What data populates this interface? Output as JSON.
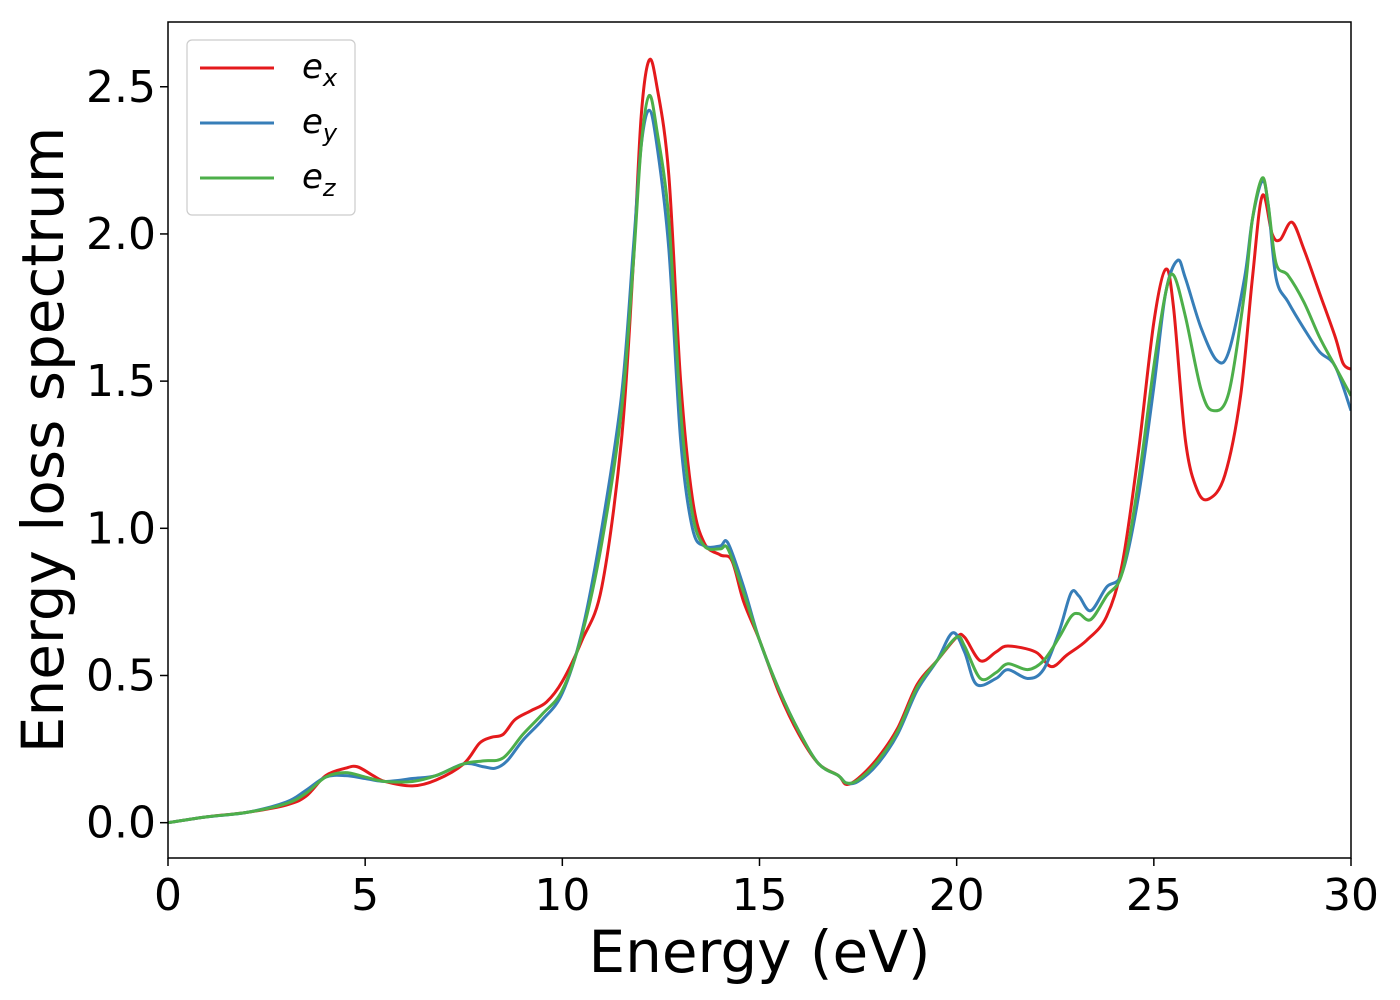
{
  "chart_data": {
    "type": "line",
    "title": "",
    "xlabel": "Energy (eV)",
    "ylabel": "Energy loss spectrum",
    "xlim": [
      0,
      30
    ],
    "ylim": [
      -0.12,
      2.72
    ],
    "xticks": [
      0,
      5,
      10,
      15,
      20,
      25,
      30
    ],
    "xtick_labels": [
      "0",
      "5",
      "10",
      "15",
      "20",
      "25",
      "30"
    ],
    "yticks": [
      0.0,
      0.5,
      1.0,
      1.5,
      2.0,
      2.5
    ],
    "ytick_labels": [
      "0.0",
      "0.5",
      "1.0",
      "1.5",
      "2.0",
      "2.5"
    ],
    "grid": false,
    "legend_position": "top-left",
    "series": [
      {
        "name": "e",
        "subscript": "x",
        "color": "#e41a1c",
        "points": [
          [
            0,
            0.0
          ],
          [
            1,
            0.02
          ],
          [
            2,
            0.035
          ],
          [
            3,
            0.06
          ],
          [
            3.5,
            0.09
          ],
          [
            4,
            0.16
          ],
          [
            4.5,
            0.185
          ],
          [
            4.8,
            0.19
          ],
          [
            5.2,
            0.16
          ],
          [
            5.5,
            0.14
          ],
          [
            6.2,
            0.125
          ],
          [
            6.8,
            0.145
          ],
          [
            7.5,
            0.2
          ],
          [
            7.9,
            0.27
          ],
          [
            8.2,
            0.29
          ],
          [
            8.5,
            0.3
          ],
          [
            8.8,
            0.35
          ],
          [
            9.2,
            0.38
          ],
          [
            9.6,
            0.41
          ],
          [
            10,
            0.48
          ],
          [
            10.5,
            0.62
          ],
          [
            11,
            0.8
          ],
          [
            11.5,
            1.3
          ],
          [
            11.8,
            1.9
          ],
          [
            12,
            2.4
          ],
          [
            12.2,
            2.59
          ],
          [
            12.4,
            2.5
          ],
          [
            12.7,
            2.2
          ],
          [
            13,
            1.5
          ],
          [
            13.3,
            1.1
          ],
          [
            13.6,
            0.95
          ],
          [
            14,
            0.91
          ],
          [
            14.3,
            0.89
          ],
          [
            14.6,
            0.75
          ],
          [
            15,
            0.62
          ],
          [
            15.5,
            0.44
          ],
          [
            16,
            0.3
          ],
          [
            16.5,
            0.2
          ],
          [
            17,
            0.16
          ],
          [
            17.2,
            0.13
          ],
          [
            17.5,
            0.15
          ],
          [
            18,
            0.22
          ],
          [
            18.5,
            0.32
          ],
          [
            19,
            0.47
          ],
          [
            19.5,
            0.55
          ],
          [
            20,
            0.63
          ],
          [
            20.2,
            0.63
          ],
          [
            20.6,
            0.55
          ],
          [
            21,
            0.58
          ],
          [
            21.3,
            0.6
          ],
          [
            22,
            0.58
          ],
          [
            22.4,
            0.53
          ],
          [
            22.8,
            0.57
          ],
          [
            23.3,
            0.62
          ],
          [
            23.8,
            0.7
          ],
          [
            24.2,
            0.88
          ],
          [
            24.6,
            1.25
          ],
          [
            25,
            1.7
          ],
          [
            25.3,
            1.88
          ],
          [
            25.5,
            1.75
          ],
          [
            25.8,
            1.3
          ],
          [
            26.1,
            1.13
          ],
          [
            26.4,
            1.1
          ],
          [
            26.8,
            1.18
          ],
          [
            27.2,
            1.45
          ],
          [
            27.5,
            1.85
          ],
          [
            27.75,
            2.13
          ],
          [
            28,
            2.0
          ],
          [
            28.2,
            1.98
          ],
          [
            28.5,
            2.04
          ],
          [
            28.8,
            1.95
          ],
          [
            29.2,
            1.8
          ],
          [
            29.6,
            1.65
          ],
          [
            29.8,
            1.56
          ],
          [
            30,
            1.54
          ]
        ]
      },
      {
        "name": "e",
        "subscript": "y",
        "color": "#377eb8",
        "points": [
          [
            0,
            0.0
          ],
          [
            1,
            0.02
          ],
          [
            2,
            0.035
          ],
          [
            3,
            0.07
          ],
          [
            3.5,
            0.11
          ],
          [
            4,
            0.155
          ],
          [
            4.5,
            0.16
          ],
          [
            5,
            0.15
          ],
          [
            5.5,
            0.14
          ],
          [
            6.2,
            0.15
          ],
          [
            6.8,
            0.16
          ],
          [
            7.5,
            0.2
          ],
          [
            8,
            0.19
          ],
          [
            8.3,
            0.185
          ],
          [
            8.6,
            0.21
          ],
          [
            9,
            0.28
          ],
          [
            9.5,
            0.35
          ],
          [
            10,
            0.44
          ],
          [
            10.5,
            0.65
          ],
          [
            11,
            1.0
          ],
          [
            11.5,
            1.45
          ],
          [
            11.8,
            1.95
          ],
          [
            12,
            2.3
          ],
          [
            12.2,
            2.42
          ],
          [
            12.4,
            2.3
          ],
          [
            12.7,
            1.95
          ],
          [
            13,
            1.3
          ],
          [
            13.3,
            1.0
          ],
          [
            13.6,
            0.94
          ],
          [
            14,
            0.94
          ],
          [
            14.2,
            0.95
          ],
          [
            14.6,
            0.8
          ],
          [
            15,
            0.62
          ],
          [
            15.5,
            0.45
          ],
          [
            16,
            0.31
          ],
          [
            16.5,
            0.2
          ],
          [
            17,
            0.16
          ],
          [
            17.2,
            0.135
          ],
          [
            17.5,
            0.14
          ],
          [
            18,
            0.2
          ],
          [
            18.5,
            0.3
          ],
          [
            19,
            0.45
          ],
          [
            19.5,
            0.55
          ],
          [
            19.9,
            0.645
          ],
          [
            20.2,
            0.58
          ],
          [
            20.5,
            0.47
          ],
          [
            21,
            0.49
          ],
          [
            21.3,
            0.52
          ],
          [
            21.8,
            0.49
          ],
          [
            22.2,
            0.52
          ],
          [
            22.6,
            0.65
          ],
          [
            22.9,
            0.78
          ],
          [
            23.1,
            0.77
          ],
          [
            23.4,
            0.72
          ],
          [
            23.8,
            0.8
          ],
          [
            24.2,
            0.85
          ],
          [
            24.6,
            1.1
          ],
          [
            25,
            1.48
          ],
          [
            25.3,
            1.8
          ],
          [
            25.6,
            1.91
          ],
          [
            25.8,
            1.85
          ],
          [
            26.2,
            1.68
          ],
          [
            26.6,
            1.57
          ],
          [
            26.9,
            1.6
          ],
          [
            27.3,
            1.85
          ],
          [
            27.5,
            2.05
          ],
          [
            27.75,
            2.18
          ],
          [
            27.9,
            2.1
          ],
          [
            28.1,
            1.85
          ],
          [
            28.4,
            1.77
          ],
          [
            28.8,
            1.68
          ],
          [
            29.2,
            1.6
          ],
          [
            29.6,
            1.55
          ],
          [
            30,
            1.4
          ]
        ]
      },
      {
        "name": "e",
        "subscript": "z",
        "color": "#4daf4a",
        "points": [
          [
            0,
            0.0
          ],
          [
            1,
            0.02
          ],
          [
            2,
            0.035
          ],
          [
            3,
            0.065
          ],
          [
            3.5,
            0.1
          ],
          [
            4,
            0.155
          ],
          [
            4.5,
            0.17
          ],
          [
            5,
            0.155
          ],
          [
            5.5,
            0.14
          ],
          [
            6.2,
            0.14
          ],
          [
            6.8,
            0.16
          ],
          [
            7.5,
            0.2
          ],
          [
            8,
            0.21
          ],
          [
            8.5,
            0.22
          ],
          [
            9,
            0.3
          ],
          [
            9.5,
            0.37
          ],
          [
            10,
            0.45
          ],
          [
            10.5,
            0.64
          ],
          [
            11,
            0.95
          ],
          [
            11.5,
            1.4
          ],
          [
            11.8,
            1.9
          ],
          [
            12,
            2.3
          ],
          [
            12.2,
            2.47
          ],
          [
            12.4,
            2.35
          ],
          [
            12.7,
            2.05
          ],
          [
            13,
            1.4
          ],
          [
            13.3,
            1.05
          ],
          [
            13.6,
            0.94
          ],
          [
            14,
            0.93
          ],
          [
            14.2,
            0.93
          ],
          [
            14.6,
            0.78
          ],
          [
            15,
            0.62
          ],
          [
            15.5,
            0.45
          ],
          [
            16,
            0.31
          ],
          [
            16.5,
            0.2
          ],
          [
            17,
            0.16
          ],
          [
            17.2,
            0.135
          ],
          [
            17.5,
            0.145
          ],
          [
            18,
            0.21
          ],
          [
            18.5,
            0.31
          ],
          [
            19,
            0.46
          ],
          [
            19.5,
            0.55
          ],
          [
            20,
            0.63
          ],
          [
            20.2,
            0.6
          ],
          [
            20.6,
            0.49
          ],
          [
            21,
            0.51
          ],
          [
            21.3,
            0.54
          ],
          [
            21.8,
            0.52
          ],
          [
            22.2,
            0.55
          ],
          [
            22.6,
            0.63
          ],
          [
            22.9,
            0.7
          ],
          [
            23.1,
            0.71
          ],
          [
            23.4,
            0.69
          ],
          [
            23.8,
            0.77
          ],
          [
            24.2,
            0.85
          ],
          [
            24.6,
            1.15
          ],
          [
            25,
            1.55
          ],
          [
            25.3,
            1.8
          ],
          [
            25.5,
            1.86
          ],
          [
            25.8,
            1.72
          ],
          [
            26.2,
            1.47
          ],
          [
            26.5,
            1.4
          ],
          [
            26.9,
            1.46
          ],
          [
            27.3,
            1.8
          ],
          [
            27.5,
            2.05
          ],
          [
            27.75,
            2.19
          ],
          [
            27.9,
            2.1
          ],
          [
            28.1,
            1.9
          ],
          [
            28.4,
            1.86
          ],
          [
            28.8,
            1.77
          ],
          [
            29.2,
            1.65
          ],
          [
            29.6,
            1.55
          ],
          [
            30,
            1.45
          ]
        ]
      }
    ]
  }
}
